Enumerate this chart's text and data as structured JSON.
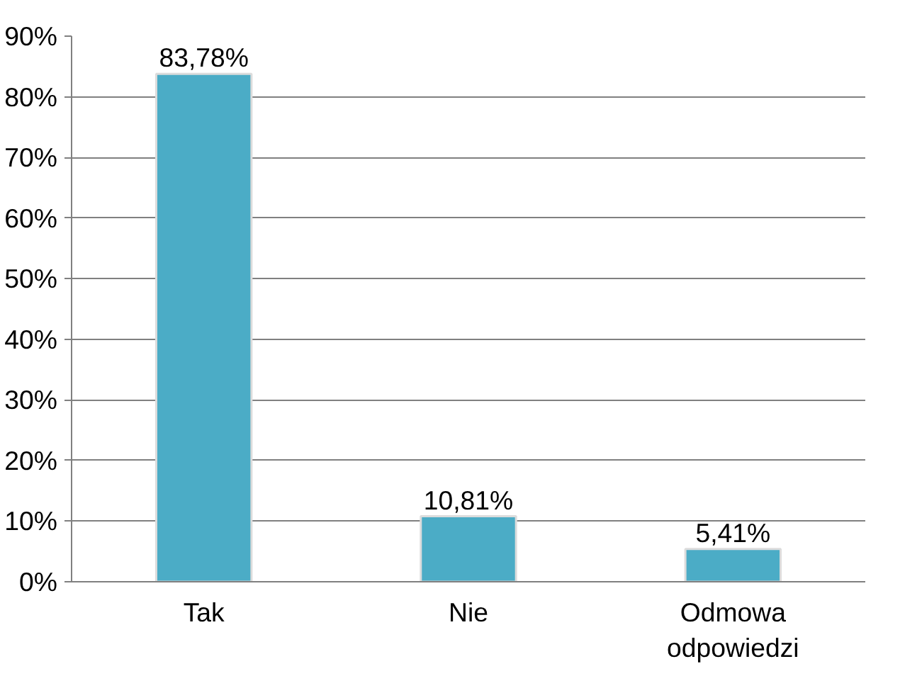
{
  "chart_data": {
    "type": "bar",
    "categories": [
      "Tak",
      "Nie",
      "Odmowa odpowiedzi"
    ],
    "values": [
      83.78,
      10.81,
      5.41
    ],
    "value_labels": [
      "83,78%",
      "10,81%",
      "5,41%"
    ],
    "color": "#4bacc6",
    "ylim": [
      0,
      90
    ],
    "yticks": [
      {
        "value": 0,
        "label": "0%"
      },
      {
        "value": 10,
        "label": "10%"
      },
      {
        "value": 20,
        "label": "20%"
      },
      {
        "value": 30,
        "label": "30%"
      },
      {
        "value": 40,
        "label": "40%"
      },
      {
        "value": 50,
        "label": "50%"
      },
      {
        "value": 60,
        "label": "60%"
      },
      {
        "value": 70,
        "label": "70%"
      },
      {
        "value": 80,
        "label": "80%"
      },
      {
        "value": 90,
        "label": "90%"
      }
    ],
    "grid": "y"
  }
}
